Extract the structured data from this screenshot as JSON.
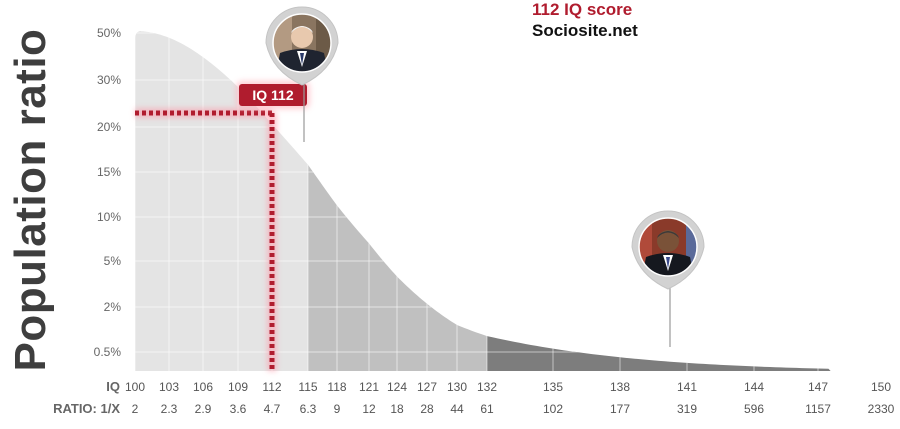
{
  "headline": "112 IQ score",
  "site": "Sociosite.net",
  "chart_data": {
    "type": "area",
    "title": "112 IQ score",
    "ylabel": "Population ratio",
    "y_ticks": [
      "50%",
      "30%",
      "20%",
      "15%",
      "10%",
      "5%",
      "2%",
      "0.5%"
    ],
    "x_row_label": "IQ",
    "ratio_row_label": "RATIO: 1/X",
    "x": [
      100,
      103,
      106,
      109,
      112,
      115,
      118,
      121,
      124,
      127,
      130,
      132,
      135,
      138,
      141,
      144,
      147,
      150
    ],
    "ratio": [
      2,
      2.3,
      2.9,
      3.6,
      4.7,
      6.3,
      9,
      12,
      18,
      28,
      44,
      61,
      102,
      177,
      319,
      596,
      1157,
      2330
    ],
    "highlight": {
      "iq": 112,
      "label": "IQ 112"
    },
    "markers": [
      {
        "name": "biden-portrait-icon",
        "iq": 113
      },
      {
        "name": "obama-portrait-icon",
        "iq": 140
      }
    ],
    "bands": [
      {
        "from": 100,
        "to": 115,
        "color": "#e4e4e4"
      },
      {
        "from": 115,
        "to": 132,
        "color": "#c0c0c0"
      },
      {
        "from": 132,
        "to": 150,
        "color": "#7d7d7d"
      }
    ],
    "accent": "#b01c2e"
  }
}
